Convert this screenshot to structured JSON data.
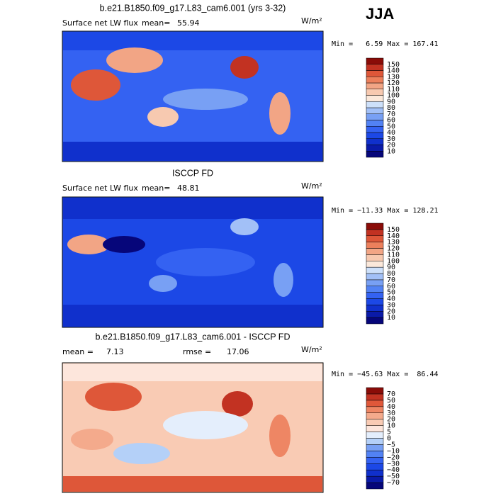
{
  "season": "JJA",
  "panels": [
    {
      "title": "b.e21.B1850.f09_g17.L83_cam6.001 (yrs 3-32)",
      "variable": "Surface net LW flux",
      "mean_label": "mean=",
      "mean": "55.94",
      "units": "W/m²",
      "stats": "Min =   6.59 Max = 167.41",
      "colorbar": {
        "levels": [
          "10",
          "20",
          "30",
          "40",
          "50",
          "60",
          "70",
          "80",
          "90",
          "100",
          "110",
          "120",
          "130",
          "140",
          "150"
        ],
        "colors": [
          "#06067a",
          "#0a1aa8",
          "#1030cc",
          "#1c48e6",
          "#3462f2",
          "#5282f4",
          "#78a0f4",
          "#a2c0f7",
          "#cde0fa",
          "#fbe8da",
          "#f7c9b0",
          "#f2a585",
          "#ec805c",
          "#de5739",
          "#c23222",
          "#8a0c08"
        ]
      }
    },
    {
      "title": "ISCCP FD",
      "variable": "Surface net LW flux",
      "mean_label": "mean=",
      "mean": "48.81",
      "units": "W/m²",
      "stats": "Min = −11.33 Max = 128.21",
      "colorbar": {
        "levels": [
          "10",
          "20",
          "30",
          "40",
          "50",
          "60",
          "70",
          "80",
          "90",
          "100",
          "110",
          "120",
          "130",
          "140",
          "150"
        ],
        "colors": [
          "#06067a",
          "#0a1aa8",
          "#1030cc",
          "#1c48e6",
          "#3462f2",
          "#5282f4",
          "#78a0f4",
          "#a2c0f7",
          "#cde0fa",
          "#fbe8da",
          "#f7c9b0",
          "#f2a585",
          "#ec805c",
          "#de5739",
          "#c23222",
          "#8a0c08"
        ]
      }
    },
    {
      "title": "b.e21.B1850.f09_g17.L83_cam6.001 - ISCCP FD",
      "mean_label": "mean =",
      "mean": "7.13",
      "rmse_label": "rmse =",
      "rmse": "17.06",
      "units": "W/m²",
      "stats": "Min = −45.63 Max =  86.44",
      "colorbar": {
        "levels": [
          "−70",
          "−50",
          "−40",
          "−30",
          "−20",
          "−10",
          "−5",
          "0",
          "5",
          "10",
          "20",
          "30",
          "40",
          "50",
          "70"
        ],
        "colors": [
          "#06067a",
          "#0a1aa8",
          "#1030cc",
          "#1c48e6",
          "#3462f2",
          "#5282f4",
          "#78a0f4",
          "#b4d0f8",
          "#e4eefc",
          "#fde6dc",
          "#f9cbb4",
          "#f4aa8c",
          "#ee8664",
          "#e0583a",
          "#c23222",
          "#8a0c08"
        ]
      }
    }
  ]
}
